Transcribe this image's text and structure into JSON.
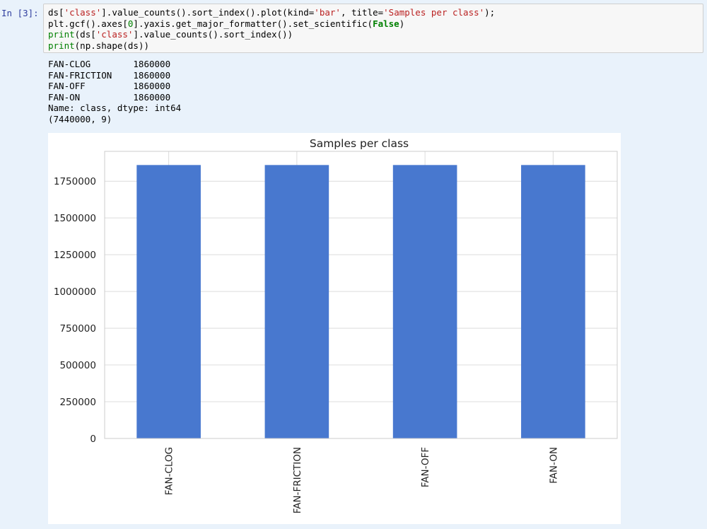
{
  "cell": {
    "prompt": "In [3]:",
    "code_lines": [
      [
        {
          "t": "ds["
        },
        {
          "t": "'class'",
          "c": "s"
        },
        {
          "t": "].value_counts().sort_index().plot(kind="
        },
        {
          "t": "'bar'",
          "c": "s"
        },
        {
          "t": ", title="
        },
        {
          "t": "'Samples per class'",
          "c": "s"
        },
        {
          "t": ");"
        }
      ],
      [
        {
          "t": "plt.gcf().axes["
        },
        {
          "t": "0",
          "c": "bi"
        },
        {
          "t": "].yaxis.get_major_formatter().set_scientific("
        },
        {
          "t": "False",
          "c": "kw"
        },
        {
          "t": ")"
        }
      ],
      [
        {
          "t": "print",
          "c": "bi"
        },
        {
          "t": "(ds["
        },
        {
          "t": "'class'",
          "c": "s"
        },
        {
          "t": "].value_counts().sort_index())"
        }
      ],
      [
        {
          "t": "print",
          "c": "bi"
        },
        {
          "t": "(np.shape(ds))"
        }
      ]
    ],
    "output_lines": [
      "FAN-CLOG        1860000",
      "FAN-FRICTION    1860000",
      "FAN-OFF         1860000",
      "FAN-ON          1860000",
      "Name: class, dtype: int64",
      "(7440000, 9)"
    ]
  },
  "chart_data": {
    "type": "bar",
    "title": "Samples per class",
    "categories": [
      "FAN-CLOG",
      "FAN-FRICTION",
      "FAN-OFF",
      "FAN-ON"
    ],
    "values": [
      1860000,
      1860000,
      1860000,
      1860000
    ],
    "xlabel": "",
    "ylabel": "",
    "ylim": [
      0,
      1953000
    ],
    "yticks": [
      0,
      250000,
      500000,
      750000,
      1000000,
      1250000,
      1500000,
      1750000
    ],
    "grid": true,
    "bar_color": "#4878cf",
    "grid_color": "#dcdcdc"
  }
}
